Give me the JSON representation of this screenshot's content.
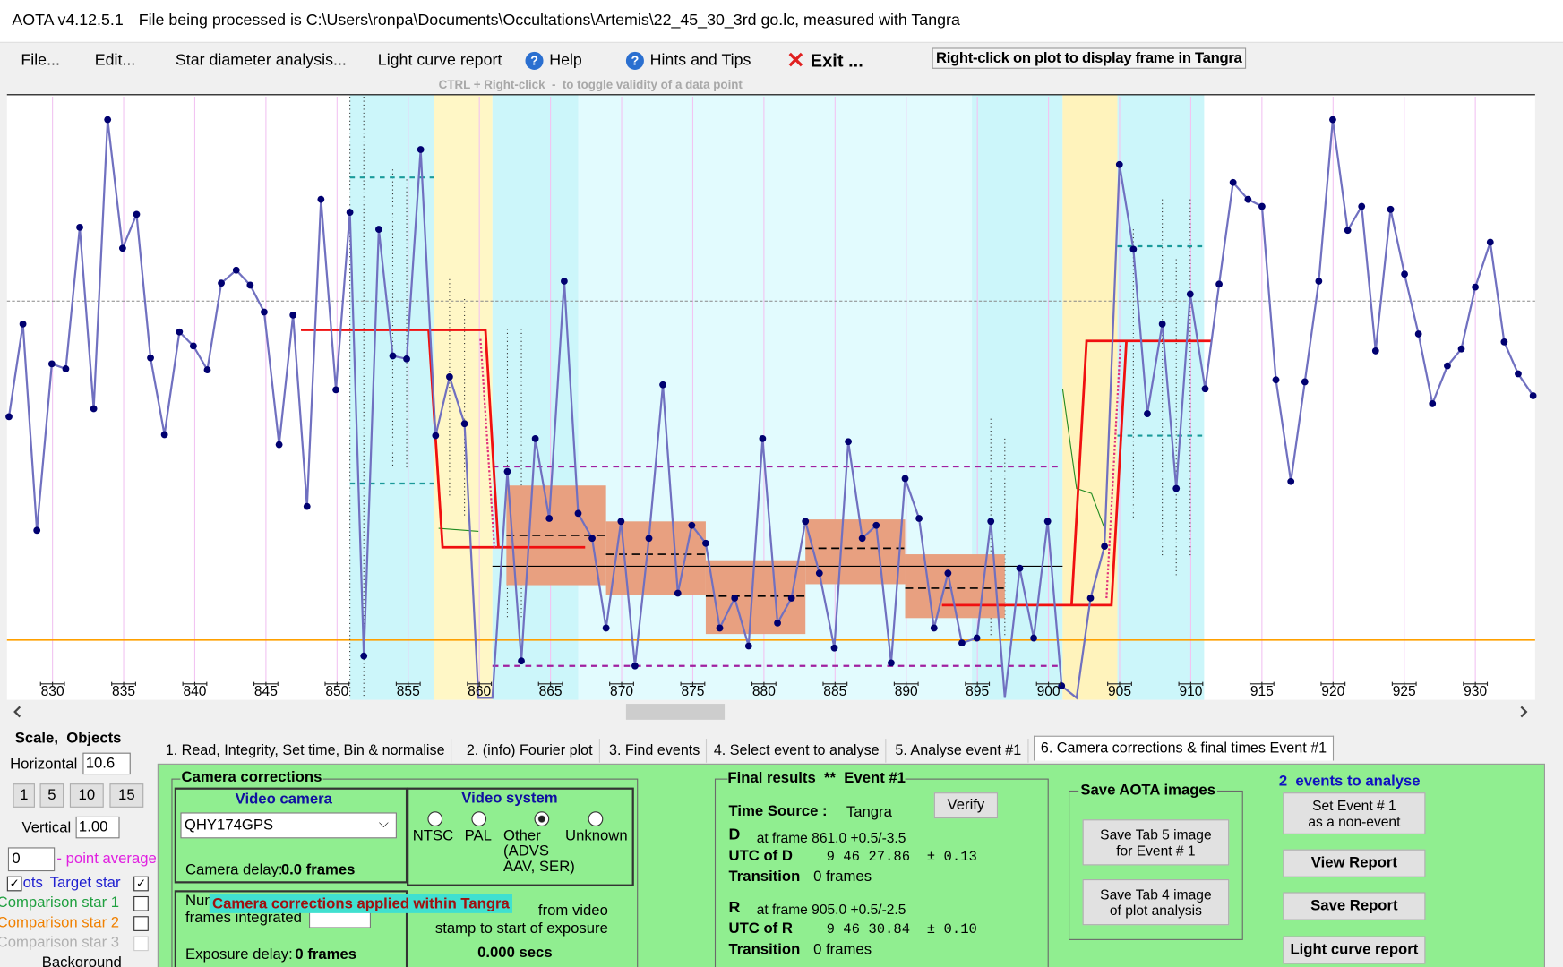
{
  "title_bar": {
    "app": "AOTA v4.12.5.1",
    "file": "File being processed is C:\\Users\\ronpa\\Documents\\Occultations\\Artemis\\22_45_30_3rd go.lc, measured with Tangra"
  },
  "menu": [
    "File...",
    "Edit...",
    "Star diameter analysis...",
    "Light curve report",
    "Help",
    "Hints and Tips",
    "Exit ..."
  ],
  "plot_hint": "Right-click on plot to display frame in Tangra",
  "validity_hint": "CTRL + Right-click  -  to toggle validity of a data point",
  "plot": {
    "xlim": [
      826.8,
      934.2
    ],
    "xticks": [
      830,
      835,
      840,
      845,
      850,
      855,
      860,
      865,
      870,
      875,
      880,
      885,
      890,
      895,
      900,
      905,
      910,
      915,
      920,
      925,
      930
    ]
  },
  "tabs": [
    "1. Read, Integrity, Set time, Bin & normalise",
    "2. (info) Fourier plot",
    "3. Find events",
    "4. Select event to analyse",
    "5. Analyse event #1",
    "6. Camera corrections & final times Event #1"
  ],
  "left_panel": {
    "title": "Scale,  Objects",
    "horizontal_label": "Horizontal",
    "horizontal_value": 10.6,
    "scale_buttons": [
      1,
      5,
      10,
      15
    ],
    "vertical_label": "Vertical",
    "vertical_value": "1.00",
    "point_average_value": 0,
    "point_average_label": "- point average",
    "objects": [
      "ots",
      "Target star",
      "Comparison star 1",
      "Comparison star 2",
      "Comparison star 3",
      "Background"
    ]
  },
  "camera_corrections": {
    "title": "Camera corrections",
    "video_camera_title": "Video camera",
    "camera": "QHY174GPS",
    "camera_delay_label": "Camera delay:",
    "camera_delay": "0.0 frames",
    "video_system_title": "Video system",
    "systems": [
      "NTSC",
      "PAL",
      "Other",
      "Unknown"
    ],
    "other_note": "(ADVS\nAAV, SER)",
    "frames_label": "Num\nframes integrated",
    "tooltip": "Camera corrections applied within Tangra",
    "stamp_note": "from video\nstamp to start of exposure",
    "stamp_value": "0.000 secs",
    "exposure_delay_label": "Exposure delay:",
    "exposure_delay": "0 frames"
  },
  "final_results": {
    "title": "Final results  **  Event #1",
    "time_source_label": "Time Source :",
    "time_source": "Tangra",
    "verify": "Verify",
    "d_label": "D",
    "d_frame": "at frame 861.0 +0.5/-3.5",
    "utc_d_label": "UTC of D",
    "utc_d": "9 46 27.86  ± 0.13",
    "d_transition_label": "Transition",
    "d_transition": "0 frames",
    "r_label": "R",
    "r_frame": "at frame 905.0 +0.5/-2.5",
    "utc_r_label": "UTC of R",
    "utc_r": "9 46 30.84  ± 0.10",
    "r_transition_label": "Transition",
    "r_transition": "0 frames"
  },
  "save_images": {
    "title": "Save AOTA images",
    "buttons": [
      "Save Tab 5 image\nfor Event # 1",
      "Save Tab 4 image\nof plot analysis"
    ]
  },
  "events": {
    "count_label": "2  events to analyse",
    "buttons": [
      "Set Event # 1\nas a non-event",
      "View Report",
      "Save Report",
      "Light curve report"
    ]
  }
}
